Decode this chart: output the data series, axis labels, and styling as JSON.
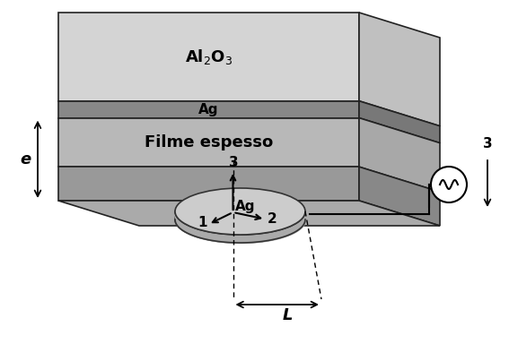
{
  "bg_color": "#ffffff",
  "layers": {
    "al2o3_color": "#d4d4d4",
    "al2o3_side_color": "#c0c0c0",
    "ag_stripe_color": "#888888",
    "ag_stripe_side_color": "#787878",
    "filme_color": "#b8b8b8",
    "filme_side_color": "#a8a8a8",
    "top_surface_color": "#999999",
    "top_surface_side_color": "#888888",
    "top_face_color": "#aaaaaa",
    "electrode_top_color": "#cccccc",
    "electrode_side_color": "#aaaaaa"
  },
  "labels": {
    "filme_espesso": "Filme espesso",
    "ag_layer": "Ag",
    "al2o3_layer": "Al$_2$O$_3$",
    "ag_top": "Ag",
    "axis1": "1",
    "axis2": "2",
    "axis3": "3",
    "label_L": "L",
    "label_e": "e",
    "label_3": "3"
  },
  "font_size": 11,
  "font_size_large": 13,
  "font_size_small": 10
}
